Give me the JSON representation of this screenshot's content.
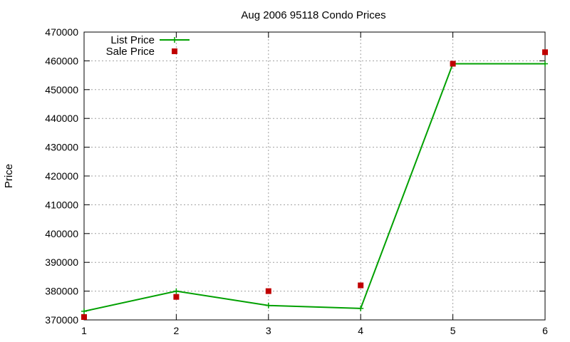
{
  "chart_data": {
    "type": "line",
    "title": "Aug 2006 95118 Condo Prices",
    "xlabel": "",
    "ylabel": "Price",
    "x": [
      1,
      2,
      3,
      4,
      5,
      6
    ],
    "xlim": [
      1,
      6
    ],
    "ylim": [
      370000,
      470000
    ],
    "xticks": [
      "1",
      "2",
      "3",
      "4",
      "5",
      "6"
    ],
    "yticks": [
      "370000",
      "380000",
      "390000",
      "400000",
      "410000",
      "420000",
      "430000",
      "440000",
      "450000",
      "460000",
      "470000"
    ],
    "grid": true,
    "legend_position": "top-left",
    "series": [
      {
        "name": "List Price",
        "style": "line+cross",
        "color": "#00a000",
        "values": [
          373000,
          380000,
          375000,
          374000,
          459000,
          459000
        ]
      },
      {
        "name": "Sale Price",
        "style": "square-points",
        "color": "#c00000",
        "values": [
          371000,
          378000,
          380000,
          382000,
          459000,
          463000
        ]
      }
    ]
  }
}
